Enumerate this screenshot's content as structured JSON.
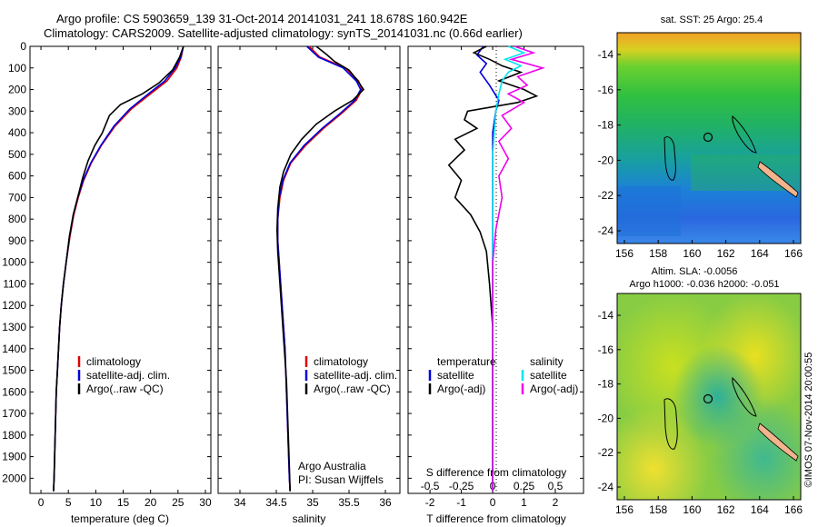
{
  "header": {
    "title_line1": "Argo profile: CS 5903659_139 31-Oct-2014 20141031_241 18.678S 160.942E",
    "title_line2": "Climatology: CARS2009. Satellite-adjusted climatology: synTS_20141031.nc (0.66d earlier)"
  },
  "colors": {
    "climatology": "#dd0000",
    "satellite": "#0000dd",
    "argo": "#000000",
    "salinity_satellite": "#00e5ee",
    "salinity_argo": "#ee00ee",
    "land": "#f2b48c"
  },
  "chart_data": [
    {
      "type": "line",
      "panel": "temperature",
      "xlabel": "temperature (deg C)",
      "ylabel": "",
      "xlim": [
        -2,
        31
      ],
      "ylim": [
        2070,
        0
      ],
      "xticks": [
        0,
        5,
        10,
        15,
        20,
        25,
        30
      ],
      "yticks": [
        0,
        100,
        200,
        300,
        400,
        500,
        600,
        700,
        800,
        900,
        1000,
        1100,
        1200,
        1300,
        1400,
        1500,
        1600,
        1700,
        1800,
        1900,
        2000
      ],
      "series": [
        {
          "name": "climatology",
          "color": "#dd0000",
          "points": [
            [
              26.0,
              0
            ],
            [
              25.6,
              50
            ],
            [
              24.8,
              100
            ],
            [
              23.0,
              160
            ],
            [
              20.0,
              220
            ],
            [
              16.5,
              290
            ],
            [
              13.5,
              370
            ],
            [
              11.0,
              460
            ],
            [
              9.2,
              540
            ],
            [
              7.8,
              620
            ],
            [
              6.8,
              700
            ],
            [
              6.0,
              780
            ],
            [
              5.3,
              880
            ],
            [
              4.6,
              1000
            ],
            [
              4.1,
              1100
            ],
            [
              3.7,
              1200
            ],
            [
              3.4,
              1300
            ],
            [
              3.2,
              1400
            ],
            [
              3.0,
              1500
            ],
            [
              2.8,
              1600
            ],
            [
              2.7,
              1700
            ],
            [
              2.6,
              1800
            ],
            [
              2.5,
              1900
            ],
            [
              2.4,
              2000
            ],
            [
              2.3,
              2060
            ]
          ]
        },
        {
          "name": "satellite-adj. clim.",
          "color": "#0000dd",
          "points": [
            [
              26.0,
              0
            ],
            [
              25.5,
              50
            ],
            [
              24.5,
              100
            ],
            [
              22.6,
              160
            ],
            [
              19.6,
              220
            ],
            [
              16.2,
              290
            ],
            [
              13.3,
              370
            ],
            [
              10.9,
              460
            ],
            [
              9.1,
              540
            ],
            [
              7.7,
              620
            ],
            [
              6.7,
              700
            ],
            [
              5.9,
              780
            ],
            [
              5.2,
              880
            ],
            [
              4.6,
              1000
            ],
            [
              4.1,
              1100
            ],
            [
              3.7,
              1200
            ],
            [
              3.4,
              1300
            ],
            [
              3.2,
              1400
            ],
            [
              3.0,
              1500
            ],
            [
              2.8,
              1600
            ],
            [
              2.7,
              1700
            ],
            [
              2.6,
              1800
            ],
            [
              2.5,
              1900
            ],
            [
              2.4,
              2000
            ],
            [
              2.3,
              2060
            ]
          ]
        },
        {
          "name": "Argo(..raw -QC)",
          "color": "#000000",
          "points": [
            [
              26.0,
              0
            ],
            [
              25.3,
              50
            ],
            [
              24.0,
              110
            ],
            [
              21.5,
              170
            ],
            [
              18.5,
              220
            ],
            [
              14.5,
              270
            ],
            [
              12.5,
              320
            ],
            [
              11.2,
              400
            ],
            [
              9.8,
              460
            ],
            [
              8.6,
              530
            ],
            [
              7.6,
              610
            ],
            [
              6.7,
              700
            ],
            [
              5.9,
              780
            ],
            [
              5.2,
              880
            ],
            [
              4.6,
              1000
            ],
            [
              4.1,
              1100
            ],
            [
              3.7,
              1200
            ],
            [
              3.4,
              1300
            ],
            [
              3.2,
              1400
            ],
            [
              3.0,
              1500
            ],
            [
              2.8,
              1600
            ],
            [
              2.7,
              1700
            ],
            [
              2.6,
              1800
            ],
            [
              2.5,
              1900
            ],
            [
              2.4,
              2000
            ],
            [
              2.3,
              2060
            ]
          ]
        }
      ],
      "legend": [
        "climatology",
        "satellite-adj. clim.",
        "Argo(..raw -QC)"
      ],
      "legend_position": "lower-center"
    },
    {
      "type": "line",
      "panel": "salinity",
      "xlabel": "salinity",
      "xlim": [
        33.7,
        36.2
      ],
      "ylim": [
        2070,
        0
      ],
      "xticks": [
        34,
        34.5,
        35,
        35.5,
        36
      ],
      "series": [
        {
          "name": "climatology",
          "color": "#dd0000",
          "points": [
            [
              34.95,
              0
            ],
            [
              35.1,
              50
            ],
            [
              35.45,
              100
            ],
            [
              35.63,
              160
            ],
            [
              35.68,
              200
            ],
            [
              35.6,
              250
            ],
            [
              35.4,
              310
            ],
            [
              35.15,
              380
            ],
            [
              34.9,
              460
            ],
            [
              34.7,
              540
            ],
            [
              34.6,
              620
            ],
            [
              34.55,
              700
            ],
            [
              34.52,
              800
            ],
            [
              34.52,
              900
            ],
            [
              34.54,
              1000
            ],
            [
              34.56,
              1100
            ],
            [
              34.58,
              1200
            ],
            [
              34.6,
              1300
            ],
            [
              34.62,
              1400
            ],
            [
              34.63,
              1500
            ],
            [
              34.64,
              1600
            ],
            [
              34.65,
              1700
            ],
            [
              34.66,
              1800
            ],
            [
              34.67,
              1900
            ],
            [
              34.68,
              2000
            ],
            [
              34.69,
              2060
            ]
          ]
        },
        {
          "name": "satellite-adj. clim.",
          "color": "#0000dd",
          "points": [
            [
              34.92,
              0
            ],
            [
              35.08,
              50
            ],
            [
              35.42,
              100
            ],
            [
              35.6,
              160
            ],
            [
              35.66,
              200
            ],
            [
              35.58,
              250
            ],
            [
              35.38,
              310
            ],
            [
              35.13,
              380
            ],
            [
              34.88,
              460
            ],
            [
              34.69,
              540
            ],
            [
              34.59,
              620
            ],
            [
              34.54,
              700
            ],
            [
              34.52,
              800
            ],
            [
              34.52,
              900
            ],
            [
              34.54,
              1000
            ],
            [
              34.56,
              1100
            ],
            [
              34.58,
              1200
            ],
            [
              34.6,
              1300
            ],
            [
              34.62,
              1400
            ],
            [
              34.63,
              1500
            ],
            [
              34.64,
              1600
            ],
            [
              34.65,
              1700
            ],
            [
              34.66,
              1800
            ],
            [
              34.67,
              1900
            ],
            [
              34.68,
              2000
            ],
            [
              34.69,
              2060
            ]
          ]
        },
        {
          "name": "Argo(..raw -QC)",
          "color": "#000000",
          "points": [
            [
              35.05,
              0
            ],
            [
              35.2,
              40
            ],
            [
              35.3,
              70
            ],
            [
              35.5,
              110
            ],
            [
              35.62,
              160
            ],
            [
              35.7,
              200
            ],
            [
              35.55,
              250
            ],
            [
              35.3,
              300
            ],
            [
              35.05,
              360
            ],
            [
              34.85,
              430
            ],
            [
              34.7,
              500
            ],
            [
              34.6,
              580
            ],
            [
              34.55,
              650
            ],
            [
              34.52,
              750
            ],
            [
              34.51,
              850
            ],
            [
              34.52,
              950
            ],
            [
              34.54,
              1050
            ],
            [
              34.56,
              1150
            ],
            [
              34.58,
              1250
            ],
            [
              34.6,
              1350
            ],
            [
              34.62,
              1450
            ],
            [
              34.64,
              1550
            ],
            [
              34.65,
              1650
            ],
            [
              34.66,
              1750
            ],
            [
              34.67,
              1850
            ],
            [
              34.68,
              1950
            ],
            [
              34.69,
              2060
            ]
          ]
        }
      ],
      "legend": [
        "climatology",
        "satellite-adj. clim.",
        "Argo(..raw -QC)"
      ],
      "annotation_line1": "Argo Australia",
      "annotation_line2": "PI: Susan Wijffels"
    },
    {
      "type": "line",
      "panel": "difference",
      "xlabel": "T difference from climatology",
      "xlabel_top": "S difference from climatology",
      "xlim": [
        -2.7,
        2.9
      ],
      "ylim": [
        2070,
        0
      ],
      "xticks_bottom": [
        -2,
        -1,
        0,
        1,
        2
      ],
      "xticks_top_labels": [
        "-0.5",
        "-0.25",
        "0",
        "0.25",
        "0.5"
      ],
      "series": [
        {
          "name": "temperature satellite",
          "color": "#0000dd",
          "points": [
            [
              -0.3,
              0
            ],
            [
              -0.5,
              40
            ],
            [
              -0.2,
              80
            ],
            [
              -0.4,
              120
            ],
            [
              -0.1,
              180
            ],
            [
              0.2,
              250
            ],
            [
              0.1,
              300
            ],
            [
              0.0,
              400
            ],
            [
              0.0,
              600
            ],
            [
              0.0,
              1000
            ],
            [
              0.0,
              2060
            ]
          ]
        },
        {
          "name": "temperature Argo(-adj)",
          "color": "#000000",
          "points": [
            [
              -0.2,
              0
            ],
            [
              -0.6,
              30
            ],
            [
              -0.1,
              60
            ],
            [
              0.3,
              90
            ],
            [
              0.9,
              120
            ],
            [
              0.2,
              160
            ],
            [
              1.0,
              200
            ],
            [
              1.4,
              230
            ],
            [
              0.8,
              260
            ],
            [
              -0.8,
              300
            ],
            [
              -0.9,
              340
            ],
            [
              -0.5,
              380
            ],
            [
              -1.2,
              430
            ],
            [
              -0.9,
              480
            ],
            [
              -1.4,
              550
            ],
            [
              -1.0,
              620
            ],
            [
              -1.2,
              700
            ],
            [
              -0.7,
              780
            ],
            [
              -0.4,
              860
            ],
            [
              -0.2,
              950
            ],
            [
              -0.1,
              1100
            ],
            [
              0.0,
              1300
            ],
            [
              0.0,
              1600
            ],
            [
              0.0,
              2060
            ]
          ]
        },
        {
          "name": "salinity satellite",
          "color": "#00e5ee",
          "points": [
            [
              0.5,
              0
            ],
            [
              1.0,
              30
            ],
            [
              0.4,
              60
            ],
            [
              0.9,
              90
            ],
            [
              0.5,
              120
            ],
            [
              0.3,
              160
            ],
            [
              0.2,
              220
            ],
            [
              0.1,
              300
            ],
            [
              0.0,
              500
            ],
            [
              0.0,
              800
            ],
            [
              0.0,
              2060
            ]
          ]
        },
        {
          "name": "salinity Argo(-adj)",
          "color": "#ee00ee",
          "points": [
            [
              0.7,
              0
            ],
            [
              1.3,
              30
            ],
            [
              0.6,
              60
            ],
            [
              1.6,
              100
            ],
            [
              0.8,
              140
            ],
            [
              1.1,
              180
            ],
            [
              0.5,
              220
            ],
            [
              1.0,
              260
            ],
            [
              0.3,
              320
            ],
            [
              0.6,
              380
            ],
            [
              0.2,
              440
            ],
            [
              0.5,
              520
            ],
            [
              0.2,
              600
            ],
            [
              0.3,
              700
            ],
            [
              0.1,
              850
            ],
            [
              0.0,
              1000
            ],
            [
              0.0,
              2060
            ]
          ]
        }
      ],
      "legend_headers": [
        "temperature",
        "salinity"
      ],
      "legend_left": [
        "satellite",
        "Argo(-adj)"
      ],
      "legend_right": [
        "satellite",
        "Argo(-adj)"
      ]
    }
  ],
  "maps": {
    "top": {
      "title": "sat. SST: 25 Argo: 25.4",
      "xticks": [
        "156",
        "158",
        "160",
        "162",
        "164",
        "166"
      ],
      "yticks": [
        "-14",
        "-16",
        "-18",
        "-20",
        "-22",
        "-24"
      ]
    },
    "bottom": {
      "title_line1": "Altim. SLA: -0.0056",
      "title_line2": "Argo h1000: -0.036 h2000: -0.051",
      "xticks": [
        "156",
        "158",
        "160",
        "162",
        "164",
        "166"
      ],
      "yticks": [
        "-14",
        "-16",
        "-18",
        "-20",
        "-22",
        "-24"
      ]
    }
  },
  "footer": {
    "stamp": "©IMOS 07-Nov-2014 20:00:55"
  }
}
